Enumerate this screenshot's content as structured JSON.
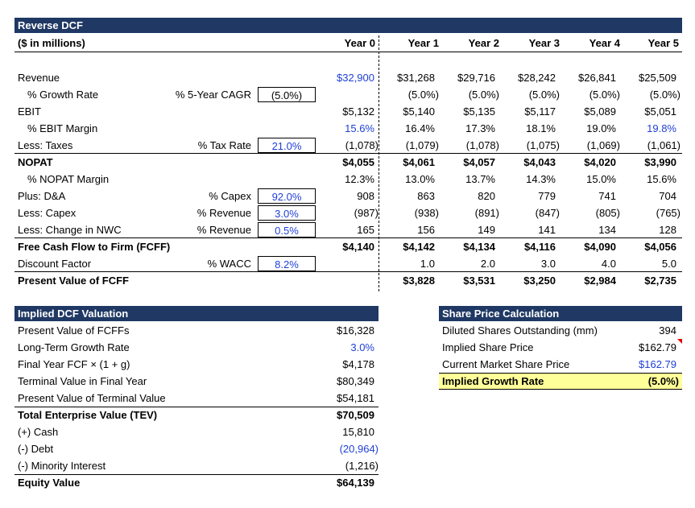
{
  "dcf": {
    "title": "Reverse DCF",
    "units": "($ in millions)",
    "years": [
      "Year 0",
      "Year 1",
      "Year 2",
      "Year 3",
      "Year 4",
      "Year 5"
    ],
    "rows": [
      {
        "label": "Revenue",
        "y0": "$32,900",
        "v": [
          "$31,268",
          "$29,716",
          "$28,242",
          "$26,841",
          "$25,509"
        ]
      },
      {
        "label": "% Growth Rate",
        "driver": "% 5-Year CAGR",
        "input": "(5.0%)",
        "v": [
          "(5.0%)",
          "(5.0%)",
          "(5.0%)",
          "(5.0%)",
          "(5.0%)"
        ]
      },
      {
        "label": "EBIT",
        "y0": "$5,132",
        "v": [
          "$5,140",
          "$5,135",
          "$5,117",
          "$5,089",
          "$5,051"
        ]
      },
      {
        "label": "% EBIT Margin",
        "y0": "15.6%",
        "v": [
          "16.4%",
          "17.3%",
          "18.1%",
          "19.0%",
          "19.8%"
        ]
      },
      {
        "label": "Less: Taxes",
        "driver": "% Tax Rate",
        "input": "21.0%",
        "y0": "(1,078)",
        "v": [
          "(1,079)",
          "(1,078)",
          "(1,075)",
          "(1,069)",
          "(1,061)"
        ]
      },
      {
        "label": "NOPAT",
        "y0": "$4,055",
        "v": [
          "$4,061",
          "$4,057",
          "$4,043",
          "$4,020",
          "$3,990"
        ]
      },
      {
        "label": "% NOPAT Margin",
        "y0": "12.3%",
        "v": [
          "13.0%",
          "13.7%",
          "14.3%",
          "15.0%",
          "15.6%"
        ]
      },
      {
        "label": "Plus: D&A",
        "driver": "% Capex",
        "input": "92.0%",
        "y0": "908",
        "v": [
          "863",
          "820",
          "779",
          "741",
          "704"
        ]
      },
      {
        "label": "Less: Capex",
        "driver": "% Revenue",
        "input": "3.0%",
        "y0": "(987)",
        "v": [
          "(938)",
          "(891)",
          "(847)",
          "(805)",
          "(765)"
        ]
      },
      {
        "label": "Less: Change in NWC",
        "driver": "% Revenue",
        "input": "0.5%",
        "y0": "165",
        "v": [
          "156",
          "149",
          "141",
          "134",
          "128"
        ]
      },
      {
        "label": "Free Cash Flow to Firm (FCFF)",
        "y0": "$4,140",
        "v": [
          "$4,142",
          "$4,134",
          "$4,116",
          "$4,090",
          "$4,056"
        ]
      },
      {
        "label": "Discount Factor",
        "driver": "% WACC",
        "input": "8.2%",
        "v": [
          "1.0",
          "2.0",
          "3.0",
          "4.0",
          "5.0"
        ]
      },
      {
        "label": "Present Value of FCFF",
        "v": [
          "$3,828",
          "$3,531",
          "$3,250",
          "$2,984",
          "$2,735"
        ]
      }
    ]
  },
  "valuation": {
    "title": "Implied DCF Valuation",
    "rows": [
      {
        "label": "Present Value of FCFFs",
        "value": "$16,328"
      },
      {
        "label": "Long-Term Growth Rate",
        "value": "3.0%"
      },
      {
        "label": "Final Year FCF × (1 + g)",
        "value": "$4,178"
      },
      {
        "label": "Terminal Value in Final Year",
        "value": "$80,349"
      },
      {
        "label": "Present Value of Terminal Value",
        "value": "$54,181"
      },
      {
        "label": "Total Enterprise Value (TEV)",
        "value": "$70,509"
      },
      {
        "label": "(+) Cash",
        "value": "15,810"
      },
      {
        "label": "(-) Debt",
        "value": "(20,964)"
      },
      {
        "label": "(-) Minority Interest",
        "value": "(1,216)"
      },
      {
        "label": "Equity Value",
        "value": "$64,139"
      }
    ]
  },
  "share_price": {
    "title": "Share Price Calculation",
    "rows": [
      {
        "label": "Diluted Shares Outstanding (mm)",
        "value": "394"
      },
      {
        "label": "Implied Share Price",
        "value": "$162.79"
      },
      {
        "label": "Current Market Share Price",
        "value": "$162.79"
      },
      {
        "label": "Implied Growth Rate",
        "value": "(5.0%)"
      }
    ]
  },
  "colors": {
    "header": "#1f3864",
    "input_blue": "#1f3fd6",
    "highlight": "#ffff99",
    "comment_marker": "#e00000"
  }
}
